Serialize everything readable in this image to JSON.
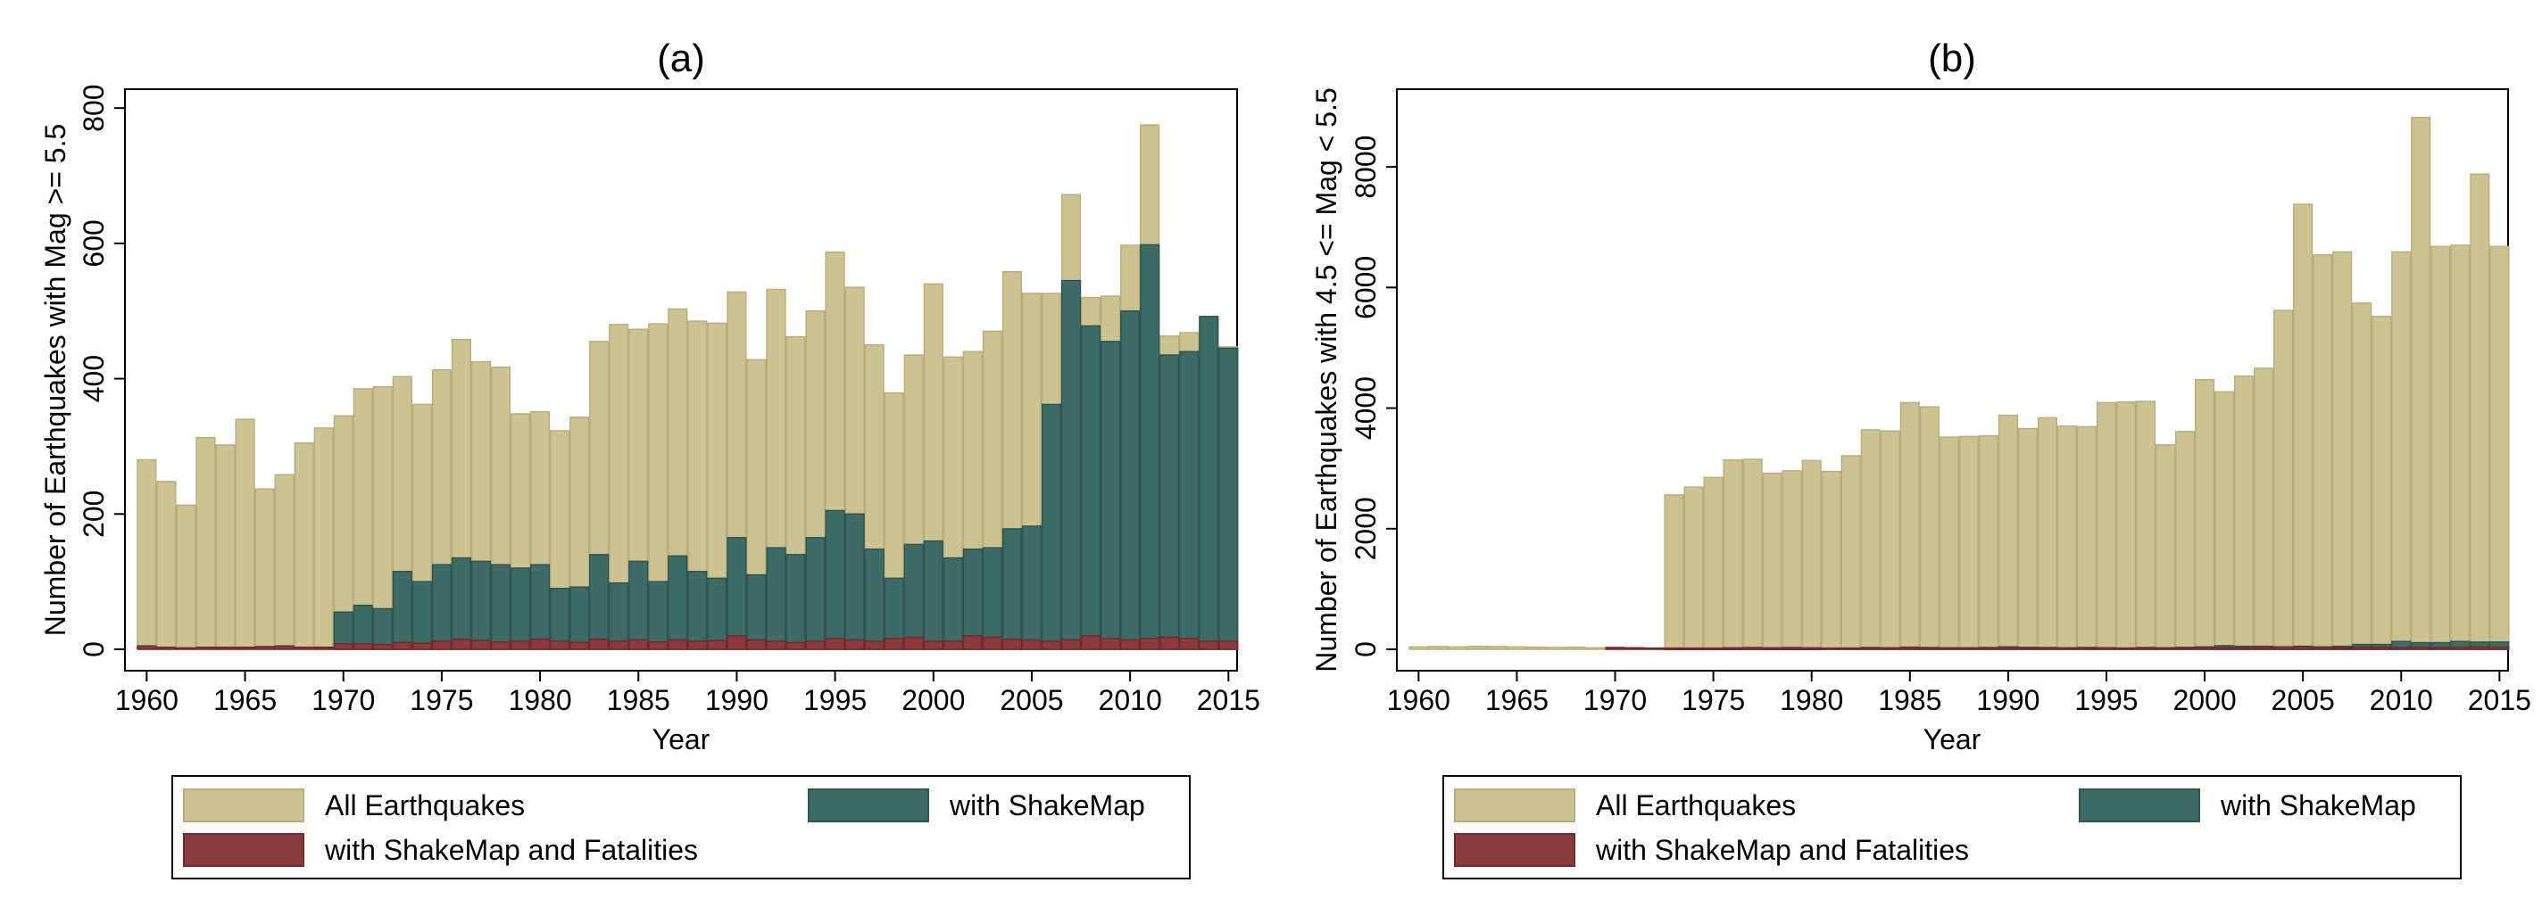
{
  "colors": {
    "all": "#cdc392",
    "all_stroke": "#b9ae7a",
    "shakemap": "#3e6b66",
    "shakemap_stroke": "#2d5550",
    "fatalities": "#8b3a3d",
    "fatalities_stroke": "#6f2b2e"
  },
  "chart_data": [
    {
      "type": "bar",
      "title": "(a)",
      "xlabel": "Year",
      "ylabel": "Number of Earthquakes with Mag >= 5.5",
      "ylim": [
        0,
        820
      ],
      "yticks": [
        0,
        200,
        400,
        600,
        800
      ],
      "xticks": [
        1960,
        1965,
        1970,
        1975,
        1980,
        1985,
        1990,
        1995,
        2000,
        2005,
        2010,
        2015
      ],
      "x": [
        1960,
        1961,
        1962,
        1963,
        1964,
        1965,
        1966,
        1967,
        1968,
        1969,
        1970,
        1971,
        1972,
        1973,
        1974,
        1975,
        1976,
        1977,
        1978,
        1979,
        1980,
        1981,
        1982,
        1983,
        1984,
        1985,
        1986,
        1987,
        1988,
        1989,
        1990,
        1991,
        1992,
        1993,
        1994,
        1995,
        1996,
        1997,
        1998,
        1999,
        2000,
        2001,
        2002,
        2003,
        2004,
        2005,
        2006,
        2007,
        2008,
        2009,
        2010,
        2011,
        2012,
        2013,
        2014,
        2015
      ],
      "series": [
        {
          "name": "All Earthquakes",
          "values": [
            280,
            248,
            213,
            313,
            302,
            340,
            237,
            258,
            305,
            327,
            345,
            385,
            388,
            403,
            362,
            413,
            458,
            425,
            417,
            348,
            351,
            323,
            343,
            455,
            480,
            473,
            481,
            503,
            485,
            482,
            528,
            428,
            532,
            462,
            500,
            587,
            535,
            450,
            379,
            435,
            540,
            432,
            440,
            470,
            558,
            526,
            526,
            672,
            520,
            522,
            597,
            775,
            463,
            468,
            485,
            447
          ]
        },
        {
          "name": "with ShakeMap",
          "values": [
            0,
            0,
            0,
            0,
            0,
            0,
            0,
            0,
            0,
            0,
            55,
            65,
            60,
            115,
            100,
            125,
            135,
            130,
            125,
            120,
            125,
            90,
            92,
            140,
            98,
            130,
            100,
            138,
            115,
            105,
            165,
            110,
            150,
            140,
            165,
            205,
            200,
            148,
            105,
            155,
            160,
            135,
            148,
            150,
            178,
            182,
            362,
            545,
            478,
            455,
            500,
            598,
            435,
            440,
            492,
            445
          ]
        },
        {
          "name": "with ShakeMap and Fatalities",
          "values": [
            5,
            3,
            2,
            3,
            3,
            3,
            4,
            5,
            3,
            3,
            8,
            8,
            7,
            10,
            9,
            12,
            15,
            13,
            11,
            12,
            15,
            12,
            10,
            15,
            12,
            14,
            11,
            14,
            12,
            13,
            20,
            14,
            12,
            10,
            12,
            16,
            14,
            12,
            16,
            18,
            12,
            12,
            20,
            18,
            15,
            14,
            12,
            14,
            20,
            16,
            14,
            16,
            18,
            16,
            12,
            12
          ]
        }
      ],
      "legend": {
        "items": [
          "All Earthquakes",
          "with ShakeMap",
          "with ShakeMap and Fatalities"
        ],
        "placement": "bottom"
      },
      "grid": false
    },
    {
      "type": "bar",
      "title": "(b)",
      "xlabel": "Year",
      "ylabel": "Number of Earthquakes with 4.5 <= Mag < 5.5",
      "ylim": [
        0,
        9200
      ],
      "yticks": [
        0,
        2000,
        4000,
        6000,
        8000
      ],
      "xticks": [
        1960,
        1965,
        1970,
        1975,
        1980,
        1985,
        1990,
        1995,
        2000,
        2005,
        2010,
        2015
      ],
      "x": [
        1960,
        1961,
        1962,
        1963,
        1964,
        1965,
        1966,
        1967,
        1968,
        1969,
        1970,
        1971,
        1972,
        1973,
        1974,
        1975,
        1976,
        1977,
        1978,
        1979,
        1980,
        1981,
        1982,
        1983,
        1984,
        1985,
        1986,
        1987,
        1988,
        1989,
        1990,
        1991,
        1992,
        1993,
        1994,
        1995,
        1996,
        1997,
        1998,
        1999,
        2000,
        2001,
        2002,
        2003,
        2004,
        2005,
        2006,
        2007,
        2008,
        2009,
        2010,
        2011,
        2012,
        2013,
        2014,
        2015
      ],
      "series": [
        {
          "name": "All Earthquakes",
          "values": [
            40,
            45,
            40,
            50,
            45,
            40,
            35,
            30,
            35,
            25,
            0,
            0,
            0,
            2560,
            2690,
            2850,
            3140,
            3150,
            2920,
            2960,
            3130,
            2950,
            3210,
            3640,
            3620,
            4090,
            4020,
            3520,
            3530,
            3540,
            3880,
            3660,
            3840,
            3700,
            3690,
            4090,
            4100,
            4110,
            3390,
            3610,
            4470,
            4270,
            4530,
            4660,
            5620,
            7380,
            6540,
            6590,
            5740,
            5520,
            6590,
            8820,
            6680,
            6700,
            7880,
            6680
          ]
        },
        {
          "name": "with ShakeMap",
          "values": [
            0,
            0,
            0,
            0,
            0,
            0,
            0,
            0,
            0,
            0,
            0,
            0,
            0,
            10,
            10,
            10,
            10,
            12,
            10,
            10,
            10,
            15,
            20,
            20,
            15,
            25,
            20,
            20,
            15,
            20,
            40,
            30,
            25,
            20,
            20,
            25,
            20,
            25,
            20,
            30,
            40,
            60,
            50,
            50,
            40,
            50,
            40,
            50,
            80,
            80,
            130,
            110,
            110,
            130,
            120,
            120
          ]
        },
        {
          "name": "with ShakeMap and Fatalities",
          "values": [
            0,
            0,
            0,
            0,
            0,
            0,
            0,
            0,
            0,
            0,
            30,
            25,
            20,
            20,
            20,
            20,
            25,
            30,
            25,
            30,
            25,
            20,
            20,
            30,
            25,
            35,
            30,
            25,
            25,
            30,
            35,
            30,
            30,
            25,
            30,
            25,
            20,
            30,
            25,
            30,
            30,
            30,
            30,
            35,
            40,
            40,
            35,
            30,
            35,
            35,
            30,
            35,
            30,
            35,
            40,
            35
          ]
        }
      ],
      "legend": {
        "items": [
          "All Earthquakes",
          "with ShakeMap",
          "with ShakeMap and Fatalities"
        ],
        "placement": "bottom"
      },
      "grid": false
    }
  ]
}
